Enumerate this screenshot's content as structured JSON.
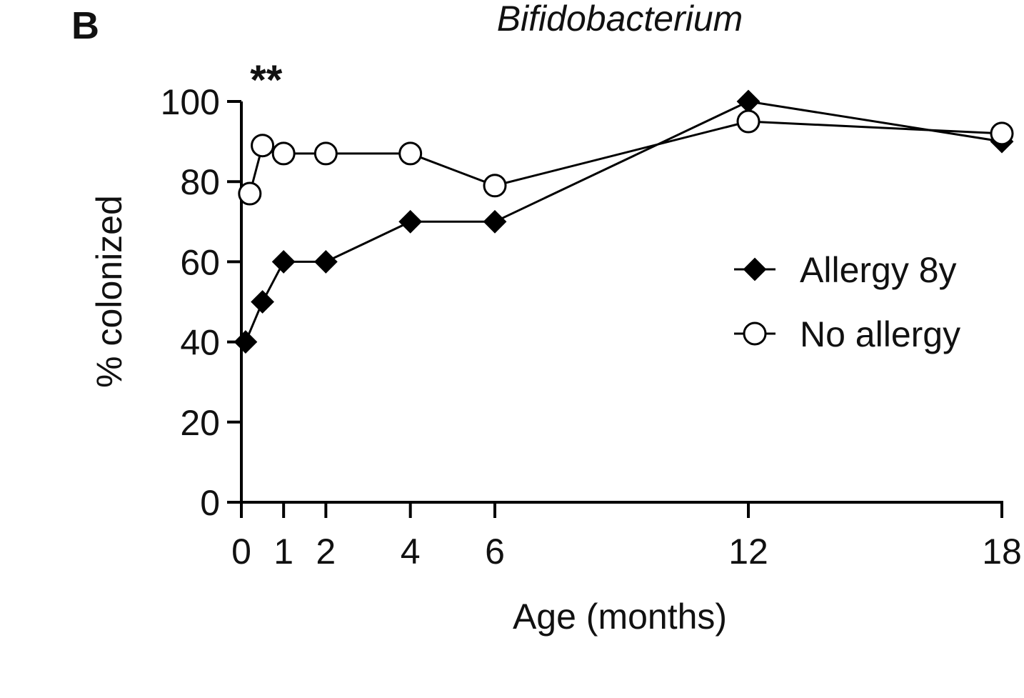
{
  "panel_label": "B",
  "chart_data": {
    "type": "line",
    "title": "Bifidobacterium",
    "xlabel": "Age (months)",
    "ylabel": "% colonized",
    "x_ticks": [
      0,
      1,
      2,
      4,
      6,
      12,
      18
    ],
    "y_ticks": [
      0,
      20,
      40,
      60,
      80,
      100
    ],
    "xlim": [
      0,
      18
    ],
    "ylim": [
      0,
      100
    ],
    "grid": false,
    "legend_position": "right",
    "annotation": {
      "text": "**",
      "x": 0.25
    },
    "series": [
      {
        "name": "Allergy 8y",
        "marker": "filled-diamond",
        "color": "#000000",
        "x": [
          0.1,
          0.5,
          1,
          2,
          4,
          6,
          12,
          18
        ],
        "y": [
          40,
          50,
          60,
          60,
          70,
          70,
          100,
          90
        ]
      },
      {
        "name": "No allergy",
        "marker": "open-circle",
        "color": "#000000",
        "x": [
          0.2,
          0.5,
          1,
          2,
          4,
          6,
          12,
          18
        ],
        "y": [
          77,
          89,
          87,
          87,
          87,
          79,
          95,
          92
        ]
      }
    ]
  }
}
